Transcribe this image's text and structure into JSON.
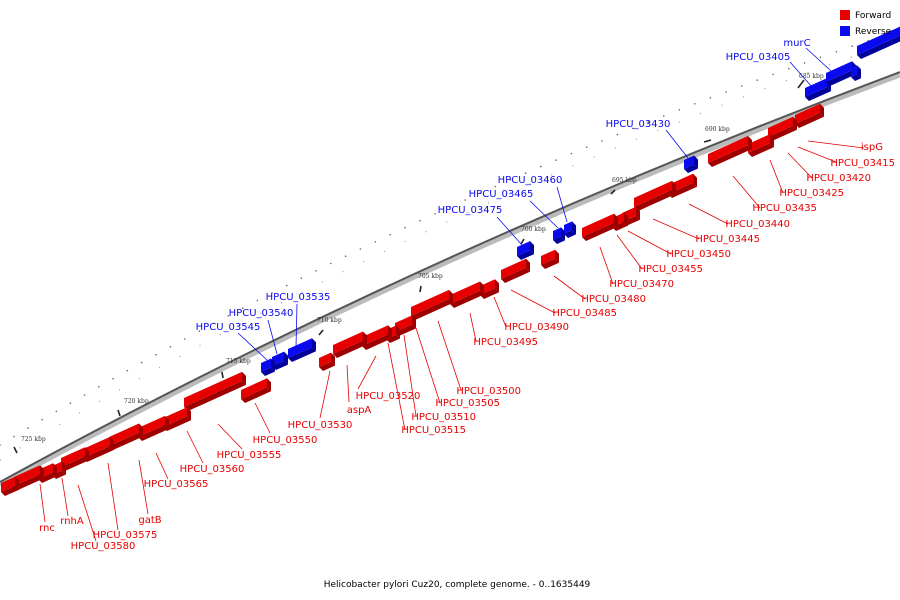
{
  "colors": {
    "forward": "#e60000",
    "forward_shade": "#9e0000",
    "reverse": "#0a0aee",
    "reverse_shade": "#00009a",
    "backbone": "#555555"
  },
  "legend": [
    {
      "label": "Forward",
      "strand": "forward"
    },
    {
      "label": "Reverse",
      "strand": "reverse"
    }
  ],
  "caption": "Helicobacter pylori Cuz20, complete genome. - 0..1635449",
  "ticks": [
    "685 kbp",
    "690 kbp",
    "695 kbp",
    "700 kbp",
    "705 kbp",
    "710 kbp",
    "715 kbp",
    "720 kbp",
    "725 kbp"
  ],
  "reverse_labels": [
    "murC",
    "HPCU_03405",
    "HPCU_03430",
    "HPCU_03460",
    "HPCU_03465",
    "HPCU_03475",
    "HPCU_03535",
    "HPCU_03540",
    "HPCU_03545"
  ],
  "forward_labels_right": [
    "ispG",
    "HPCU_03415",
    "HPCU_03420",
    "HPCU_03425",
    "HPCU_03435",
    "HPCU_03440",
    "HPCU_03445",
    "HPCU_03450",
    "HPCU_03455",
    "HPCU_03470",
    "HPCU_03480",
    "HPCU_03485",
    "HPCU_03490",
    "HPCU_03495",
    "HPCU_03500",
    "HPCU_03505",
    "HPCU_03510",
    "HPCU_03515"
  ],
  "forward_labels_lower": [
    "HPCU_03520",
    "aspA",
    "HPCU_03530",
    "HPCU_03550",
    "HPCU_03555",
    "HPCU_03560",
    "HPCU_03565",
    "gatB",
    "HPCU_03575",
    "HPCU_03580",
    "rnhA",
    "rnc"
  ]
}
